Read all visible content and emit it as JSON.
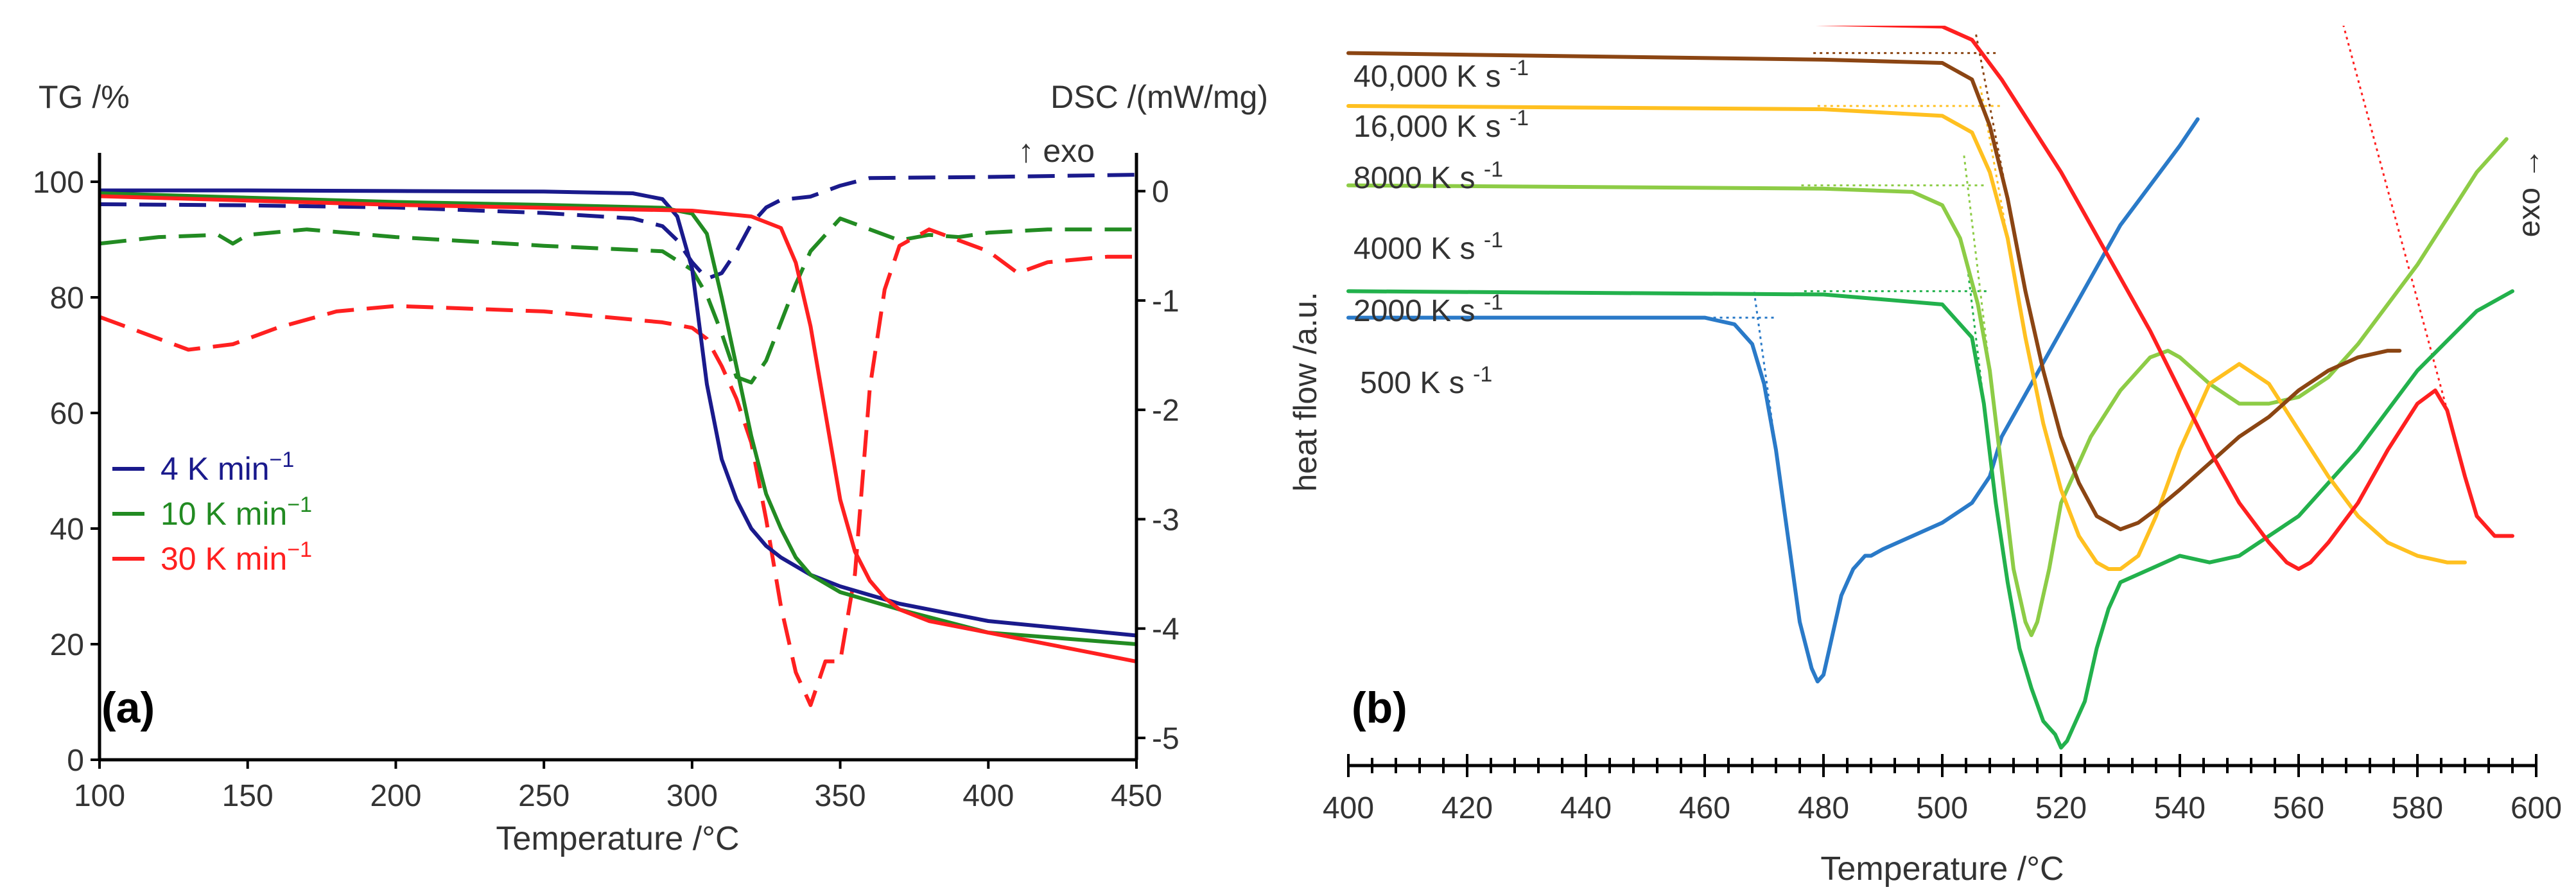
{
  "chart_data": [
    {
      "panel": "(a)",
      "type": "line",
      "xlabel": "Temperature /°C",
      "ylabel_left": "TG /%",
      "ylabel_right": "DSC /(mW/mg)",
      "exo_label": "↑ exo",
      "xlim": [
        100,
        450
      ],
      "xticks": [
        100,
        150,
        200,
        250,
        300,
        350,
        400,
        450
      ],
      "ylim_left": [
        0,
        105
      ],
      "yticks_left": [
        0,
        20,
        40,
        60,
        80,
        100
      ],
      "ylim_right": [
        -5.2,
        0.35
      ],
      "yticks_right": [
        0,
        -1,
        -2,
        -3,
        -4,
        -5
      ],
      "legend": [
        {
          "label": "4 K min",
          "sup": "−1",
          "color": "#1a1a8c"
        },
        {
          "label": "10 K min",
          "sup": "−1",
          "color": "#228b22"
        },
        {
          "label": "30 K min",
          "sup": "−1",
          "color": "#ff2020"
        }
      ],
      "series": [
        {
          "name": "TG 4 K min−1",
          "axis": "left",
          "style": "solid",
          "color": "#1a1a8c",
          "x": [
            100,
            150,
            200,
            250,
            280,
            290,
            295,
            300,
            305,
            310,
            315,
            320,
            325,
            330,
            340,
            350,
            370,
            400,
            450
          ],
          "y": [
            98.5,
            98.5,
            98.4,
            98.3,
            98,
            97,
            94,
            85,
            65,
            52,
            45,
            40,
            37,
            35,
            32,
            30,
            27,
            24,
            21.5
          ]
        },
        {
          "name": "TG 10 K min−1",
          "axis": "left",
          "style": "solid",
          "color": "#228b22",
          "x": [
            100,
            200,
            250,
            290,
            300,
            305,
            310,
            315,
            320,
            325,
            330,
            335,
            340,
            350,
            370,
            400,
            450
          ],
          "y": [
            98,
            96.5,
            96,
            95.5,
            94.5,
            91,
            80,
            68,
            56,
            46,
            40,
            35,
            32,
            29,
            26,
            22,
            20
          ]
        },
        {
          "name": "TG 30 K min−1",
          "axis": "left",
          "style": "solid",
          "color": "#ff2020",
          "x": [
            100,
            200,
            300,
            320,
            330,
            335,
            340,
            345,
            350,
            355,
            360,
            365,
            370,
            380,
            400,
            450
          ],
          "y": [
            97.5,
            96,
            95,
            94,
            92,
            86,
            75,
            60,
            45,
            36,
            31,
            28,
            26,
            24,
            22,
            17
          ]
        },
        {
          "name": "DSC 4 K min−1",
          "axis": "right",
          "style": "dashed",
          "color": "#1a1a8c",
          "x": [
            100,
            150,
            200,
            250,
            280,
            290,
            295,
            300,
            305,
            310,
            315,
            320,
            325,
            330,
            340,
            350,
            360,
            400,
            450
          ],
          "y": [
            -0.12,
            -0.13,
            -0.15,
            -0.2,
            -0.25,
            -0.32,
            -0.45,
            -0.65,
            -0.8,
            -0.75,
            -0.55,
            -0.3,
            -0.15,
            -0.08,
            -0.05,
            0.05,
            0.12,
            0.13,
            0.15
          ]
        },
        {
          "name": "DSC 10 K min−1",
          "axis": "right",
          "style": "dashed",
          "color": "#228b22",
          "x": [
            100,
            120,
            140,
            145,
            150,
            170,
            200,
            250,
            290,
            300,
            305,
            310,
            315,
            320,
            325,
            330,
            335,
            340,
            350,
            360,
            370,
            380,
            390,
            400,
            420,
            450
          ],
          "y": [
            -0.48,
            -0.42,
            -0.4,
            -0.48,
            -0.4,
            -0.35,
            -0.42,
            -0.5,
            -0.55,
            -0.72,
            -0.95,
            -1.3,
            -1.7,
            -1.75,
            -1.55,
            -1.2,
            -0.85,
            -0.55,
            -0.25,
            -0.35,
            -0.45,
            -0.4,
            -0.42,
            -0.38,
            -0.35,
            -0.35
          ]
        },
        {
          "name": "DSC 30 K min−1",
          "axis": "right",
          "style": "dashed",
          "color": "#ff2020",
          "x": [
            100,
            115,
            130,
            145,
            160,
            180,
            200,
            250,
            290,
            300,
            305,
            310,
            315,
            320,
            325,
            330,
            335,
            340,
            345,
            350,
            355,
            360,
            365,
            370,
            380,
            400,
            410,
            420,
            440,
            450
          ],
          "y": [
            -1.15,
            -1.3,
            -1.45,
            -1.4,
            -1.25,
            -1.1,
            -1.05,
            -1.1,
            -1.2,
            -1.25,
            -1.35,
            -1.6,
            -1.9,
            -2.3,
            -3,
            -3.8,
            -4.4,
            -4.7,
            -4.3,
            -4.3,
            -3.5,
            -1.8,
            -0.9,
            -0.5,
            -0.35,
            -0.55,
            -0.75,
            -0.65,
            -0.6,
            -0.6
          ]
        }
      ]
    },
    {
      "panel": "(b)",
      "type": "line",
      "xlabel": "Temperature /°C",
      "ylabel": "heat flow /a.u.",
      "exo_label": "exo →",
      "xlim": [
        400,
        600
      ],
      "xticks": [
        400,
        420,
        440,
        460,
        480,
        500,
        520,
        540,
        560,
        580,
        600
      ],
      "series": [
        {
          "name": "500 K s",
          "sup": "-1",
          "color": "#2a7ac8",
          "label": "500 K s",
          "x": [
            400,
            460,
            465,
            468,
            470,
            472,
            474,
            476,
            478,
            479,
            480,
            481,
            482,
            483,
            484,
            485,
            486,
            487,
            488,
            490,
            495,
            500,
            505,
            508,
            510,
            515,
            520,
            525,
            530,
            535,
            540,
            543
          ],
          "y": [
            68,
            68,
            67,
            64,
            58,
            48,
            35,
            22,
            15,
            13,
            14,
            18,
            22,
            26,
            28,
            30,
            31,
            32,
            32,
            33,
            35,
            37,
            40,
            44,
            50,
            58,
            66,
            74,
            82,
            88,
            94,
            98
          ]
        },
        {
          "name": "2000 K s",
          "sup": "-1",
          "color": "#22b14c",
          "label": "2000 K s",
          "x": [
            400,
            480,
            500,
            505,
            507,
            509,
            511,
            513,
            515,
            517,
            519,
            520,
            521,
            522,
            524,
            526,
            528,
            530,
            535,
            540,
            545,
            550,
            560,
            570,
            580,
            590,
            596
          ],
          "y": [
            72,
            71.5,
            70,
            65,
            55,
            40,
            28,
            18,
            12,
            7,
            5,
            3,
            4,
            6,
            10,
            18,
            24,
            28,
            30,
            32,
            31,
            32,
            38,
            48,
            60,
            69,
            72
          ]
        },
        {
          "name": "4000 K s",
          "sup": "-1",
          "color": "#8dcc46",
          "label": "4000 K s",
          "x": [
            400,
            480,
            495,
            500,
            503,
            506,
            508,
            510,
            512,
            514,
            515,
            516,
            518,
            520,
            525,
            530,
            535,
            538,
            540,
            545,
            550,
            555,
            560,
            565,
            570,
            580,
            590,
            595
          ],
          "y": [
            88,
            87.5,
            87,
            85,
            80,
            70,
            60,
            45,
            30,
            22,
            20,
            22,
            30,
            40,
            50,
            57,
            62,
            63,
            62,
            58,
            55,
            55,
            56,
            59,
            64,
            76,
            90,
            95
          ]
        },
        {
          "name": "8000 K s",
          "sup": "-1",
          "color": "#ffc020",
          "label": "8000 K s",
          "x": [
            400,
            480,
            500,
            505,
            508,
            511,
            514,
            517,
            520,
            523,
            526,
            528,
            530,
            533,
            536,
            540,
            545,
            550,
            555,
            560,
            565,
            570,
            575,
            580,
            585,
            588
          ],
          "y": [
            100,
            99.5,
            98.5,
            96,
            90,
            80,
            65,
            52,
            42,
            35,
            31,
            30,
            30,
            32,
            38,
            48,
            58,
            61,
            58,
            51,
            44,
            38,
            34,
            32,
            31,
            31
          ]
        },
        {
          "name": "16,000 K s",
          "sup": "-1",
          "color": "#8b4513",
          "label": "16,000 K s",
          "x": [
            400,
            480,
            500,
            505,
            508,
            511,
            514,
            517,
            520,
            523,
            526,
            528,
            530,
            533,
            536,
            540,
            545,
            550,
            555,
            560,
            565,
            570,
            575,
            577
          ],
          "y": [
            108,
            107,
            106.5,
            104,
            97,
            86,
            72,
            60,
            50,
            43,
            38,
            37,
            36,
            37,
            39,
            42,
            46,
            50,
            53,
            57,
            60,
            62,
            63,
            63
          ]
        },
        {
          "name": "40,000 K s",
          "sup": "-1",
          "color": "#ff2020",
          "label": "40,000 K s",
          "x": [
            400,
            450,
            500,
            505,
            510,
            515,
            520,
            525,
            530,
            535,
            540,
            545,
            550,
            555,
            558,
            560,
            562,
            565,
            570,
            575,
            580,
            583,
            585,
            588,
            590,
            593,
            596
          ],
          "y": [
            115,
            113,
            112,
            110,
            104,
            97,
            90,
            82,
            74,
            66,
            57,
            48,
            40,
            34,
            31,
            30,
            31,
            34,
            40,
            48,
            55,
            57,
            54,
            44,
            38,
            35,
            35
          ]
        }
      ],
      "onset_labels": [
        "40,000 K s",
        "16,000 K s",
        "8000 K s",
        "4000 K s",
        "2000 K s",
        "500 K s"
      ],
      "onset_sup": "-1"
    }
  ]
}
